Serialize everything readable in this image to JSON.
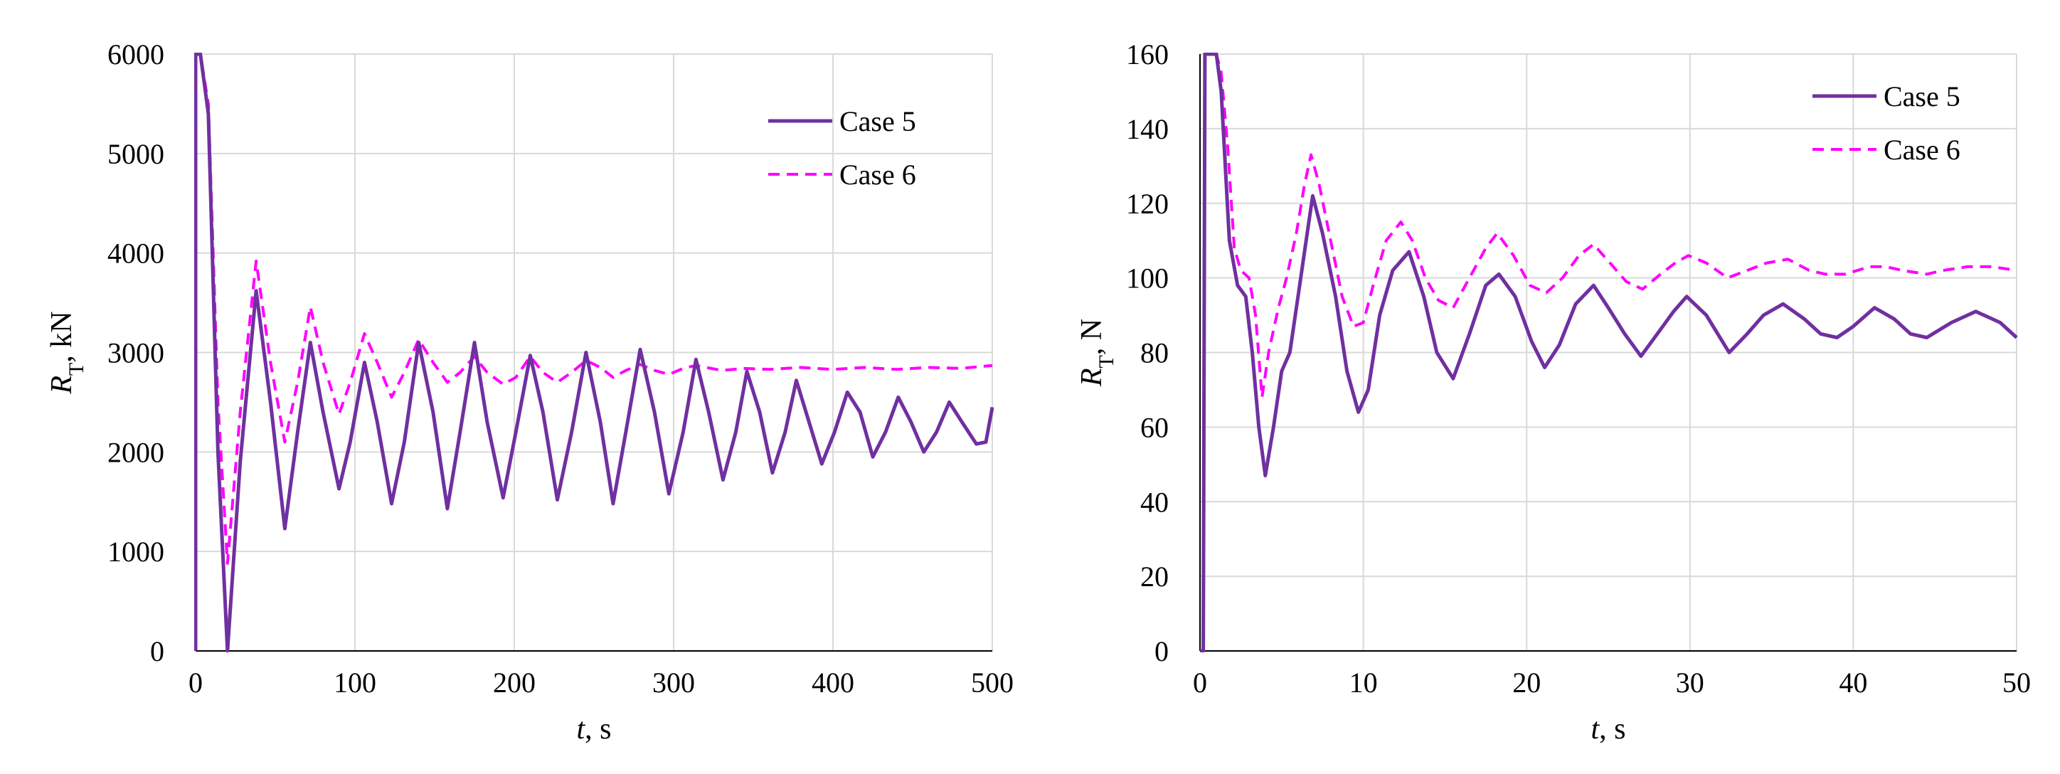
{
  "colors": {
    "case5": "#7030a0",
    "case6": "#ff00ff",
    "grid": "#d9d9d9",
    "axis": "#000000"
  },
  "chart_data": [
    {
      "type": "line",
      "title": "",
      "xlabel": {
        "italic": "t",
        "rest": ", s"
      },
      "ylabel": {
        "base": "R",
        "sub": "T",
        "rest": ", kN"
      },
      "xlim": [
        0,
        500
      ],
      "ylim": [
        0,
        6000
      ],
      "xticks": [
        0,
        100,
        200,
        300,
        400,
        500
      ],
      "yticks": [
        0,
        1000,
        2000,
        3000,
        4000,
        5000,
        6000
      ],
      "xtick_labels": [
        "0",
        "100",
        "200",
        "300",
        "400",
        "500"
      ],
      "ytick_labels": [
        "0",
        "1000",
        "2000",
        "3000",
        "4000",
        "5000",
        "6000"
      ],
      "grid": true,
      "legend_position": "top-right",
      "series": [
        {
          "name": "Case 5",
          "style": "solid",
          "x": [
            0,
            0,
            3,
            8,
            14,
            20,
            28,
            38,
            47,
            56,
            64,
            72,
            80,
            90,
            97,
            106,
            114,
            123,
            131,
            140,
            149,
            158,
            166,
            175,
            183,
            193,
            201,
            210,
            218,
            227,
            236,
            245,
            254,
            262,
            270,
            279,
            288,
            297,
            306,
            314,
            322,
            331,
            339,
            346,
            354,
            362,
            370,
            377,
            385,
            393,
            401,
            409,
            417,
            425,
            433,
            441,
            449,
            457,
            465,
            473,
            481,
            490,
            496,
            500
          ],
          "values": [
            0,
            6000,
            6000,
            5400,
            2000,
            0,
            1900,
            3620,
            2500,
            1230,
            2200,
            3100,
            2400,
            1630,
            2100,
            2900,
            2300,
            1480,
            2100,
            3100,
            2400,
            1430,
            2200,
            3100,
            2300,
            1540,
            2200,
            2970,
            2400,
            1520,
            2200,
            3000,
            2300,
            1480,
            2200,
            3030,
            2400,
            1580,
            2200,
            2930,
            2400,
            1720,
            2200,
            2810,
            2400,
            1790,
            2200,
            2720,
            2300,
            1880,
            2200,
            2600,
            2400,
            1950,
            2200,
            2550,
            2300,
            2000,
            2200,
            2500,
            2300,
            2080,
            2100,
            2450
          ]
        },
        {
          "name": "Case 6",
          "style": "dashed",
          "x": [
            0,
            0,
            3,
            8,
            14,
            20,
            28,
            38,
            47,
            56,
            64,
            72,
            80,
            90,
            97,
            106,
            114,
            123,
            131,
            140,
            149,
            158,
            166,
            175,
            183,
            193,
            201,
            210,
            218,
            227,
            236,
            245,
            254,
            262,
            270,
            279,
            288,
            297,
            306,
            314,
            330,
            345,
            360,
            380,
            400,
            420,
            440,
            460,
            480,
            500
          ],
          "values": [
            0,
            6000,
            6000,
            5500,
            2500,
            880,
            2400,
            3920,
            2900,
            2100,
            2700,
            3460,
            2900,
            2380,
            2700,
            3190,
            2900,
            2550,
            2800,
            3130,
            2900,
            2700,
            2800,
            2960,
            2800,
            2680,
            2750,
            2960,
            2800,
            2700,
            2800,
            2920,
            2850,
            2750,
            2820,
            2880,
            2820,
            2780,
            2840,
            2870,
            2820,
            2840,
            2830,
            2850,
            2830,
            2850,
            2830,
            2850,
            2840,
            2870
          ]
        }
      ]
    },
    {
      "type": "line",
      "title": "",
      "xlabel": {
        "italic": "t",
        "rest": ", s"
      },
      "ylabel": {
        "base": "R",
        "sub": "T",
        "rest": ", N"
      },
      "xlim": [
        0,
        50
      ],
      "ylim": [
        0,
        160
      ],
      "xticks": [
        0,
        10,
        20,
        30,
        40,
        50
      ],
      "yticks": [
        0,
        20,
        40,
        60,
        80,
        100,
        120,
        140,
        160
      ],
      "xtick_labels": [
        "0",
        "10",
        "20",
        "30",
        "40",
        "50"
      ],
      "ytick_labels": [
        "0",
        "20",
        "40",
        "60",
        "80",
        "100",
        "120",
        "140",
        "160"
      ],
      "grid": true,
      "legend_position": "top-right",
      "series": [
        {
          "name": "Case 5",
          "style": "solid",
          "x": [
            0,
            0.2,
            0.3,
            0.5,
            1.0,
            1.3,
            1.8,
            2.3,
            2.8,
            3.2,
            3.6,
            4.0,
            4.5,
            5.0,
            5.5,
            6.0,
            6.5,
            6.9,
            7.5,
            8.3,
            9.0,
            9.7,
            10.3,
            11.0,
            11.8,
            12.8,
            13.7,
            14.5,
            15.5,
            16.5,
            17.5,
            18.3,
            19.3,
            20.3,
            21.1,
            22.0,
            23.0,
            24.1,
            25.0,
            26.0,
            27.0,
            28.0,
            29.0,
            29.8,
            31.0,
            32.4,
            33.5,
            34.5,
            35.7,
            37.0,
            38.0,
            39.0,
            40.0,
            41.3,
            42.5,
            43.5,
            44.5,
            46.0,
            47.5,
            49.0,
            50.0
          ],
          "values": [
            0,
            0,
            160,
            160,
            160,
            150,
            110,
            98,
            95,
            80,
            60,
            47,
            60,
            75,
            80,
            95,
            110,
            122,
            112,
            95,
            75,
            64,
            70,
            90,
            102,
            107,
            95,
            80,
            73,
            85,
            98,
            101,
            95,
            83,
            76,
            82,
            93,
            98,
            92,
            85,
            79,
            85,
            91,
            95,
            90,
            80,
            85,
            90,
            93,
            89,
            85,
            84,
            87,
            92,
            89,
            85,
            84,
            88,
            91,
            88,
            84
          ]
        },
        {
          "name": "Case 6",
          "style": "dashed",
          "x": [
            0,
            0.2,
            0.3,
            0.5,
            1.0,
            1.3,
            1.7,
            2.1,
            2.5,
            3.0,
            3.4,
            3.8,
            4.2,
            4.8,
            5.3,
            5.9,
            6.4,
            6.8,
            7.3,
            8.0,
            8.7,
            9.4,
            10.0,
            10.6,
            11.4,
            12.3,
            13.0,
            13.8,
            14.6,
            15.5,
            16.5,
            17.5,
            18.2,
            19.2,
            20.2,
            21.2,
            22.2,
            23.2,
            24.1,
            25.1,
            26.1,
            27.1,
            28.2,
            29.1,
            29.9,
            31.0,
            32.3,
            33.5,
            34.7,
            36.0,
            37.3,
            38.3,
            39.5,
            41.0,
            42.0,
            43.0,
            44.5,
            45.5,
            47.0,
            48.5,
            50.0
          ],
          "values": [
            0,
            0,
            160,
            160,
            160,
            155,
            135,
            108,
            102,
            100,
            90,
            68,
            80,
            92,
            100,
            112,
            125,
            133,
            125,
            110,
            95,
            87,
            88,
            98,
            110,
            115,
            110,
            100,
            94,
            92,
            100,
            108,
            112,
            106,
            98,
            96,
            100,
            106,
            109,
            104,
            99,
            97,
            101,
            104,
            106,
            104,
            100,
            102,
            104,
            105,
            102,
            101,
            101,
            103,
            103,
            102,
            101,
            102,
            103,
            103,
            102
          ]
        }
      ]
    }
  ]
}
